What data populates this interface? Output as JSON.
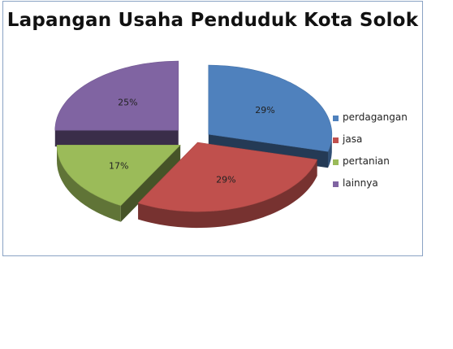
{
  "chart_data": {
    "type": "pie",
    "title": "Lapangan Usaha Penduduk Kota Solok",
    "three_d": true,
    "exploded": true,
    "legend_position": "right",
    "slices": [
      {
        "label": "perdagangan",
        "value": 29,
        "display": "29%",
        "color": "#4f81bd"
      },
      {
        "label": "jasa",
        "value": 29,
        "display": "29%",
        "color": "#c0504d"
      },
      {
        "label": "pertanian",
        "value": 17,
        "display": "17%",
        "color": "#9bbb59"
      },
      {
        "label": "lainnya",
        "value": 25,
        "display": "25%",
        "color": "#8064a2"
      }
    ]
  }
}
